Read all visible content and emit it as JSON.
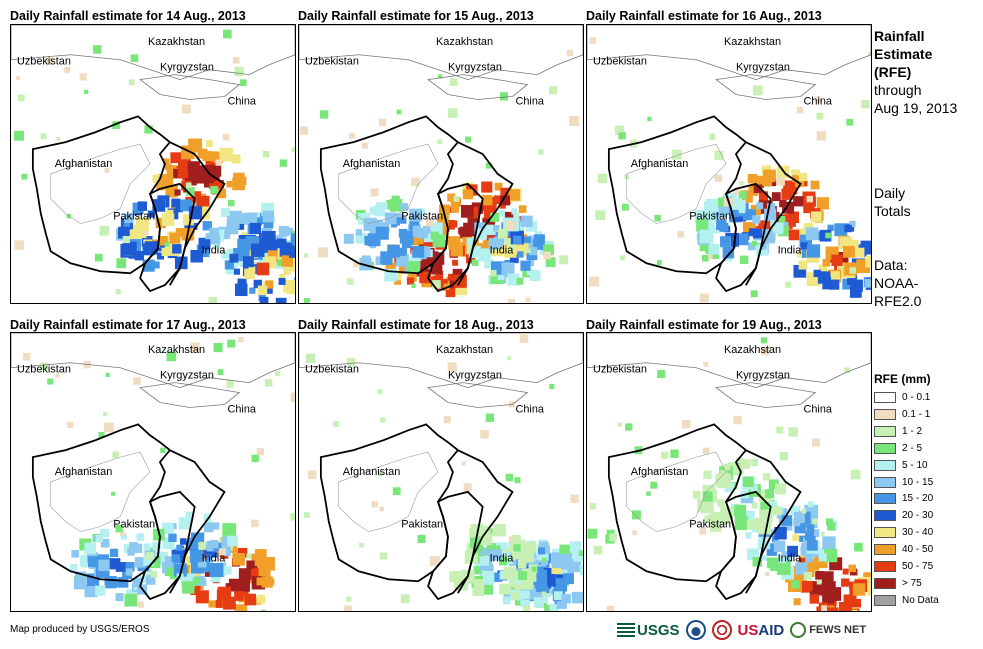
{
  "panels": [
    {
      "title": "Daily Rainfall estimate for 14 Aug., 2013",
      "day": 14
    },
    {
      "title": "Daily Rainfall estimate for 15 Aug., 2013",
      "day": 15
    },
    {
      "title": "Daily Rainfall estimate for 16 Aug., 2013",
      "day": 16
    },
    {
      "title": "Daily Rainfall estimate for 17 Aug., 2013",
      "day": 17
    },
    {
      "title": "Daily Rainfall estimate for 18 Aug., 2013",
      "day": 18
    },
    {
      "title": "Daily Rainfall estimate for 19 Aug., 2013",
      "day": 19
    }
  ],
  "map_labels": {
    "kazakhstan": "Kazakhstan",
    "uzbekistan": "Uzbekistan",
    "kyrgyzstan": "Kyrgyzstan",
    "china": "China",
    "afghanistan": "Afghanistan",
    "pakistan": "Pakistan",
    "india": "India"
  },
  "side": {
    "title_line1": "Rainfall",
    "title_line2": "Estimate",
    "title_line3": "(RFE)",
    "through": "through",
    "date": "Aug 19, 2013",
    "totals_line1": "Daily",
    "totals_line2": "Totals",
    "data_line1": "Data:",
    "data_line2": "NOAA-",
    "data_line3": "RFE2.0"
  },
  "legend": {
    "title": "RFE (mm)",
    "items": [
      {
        "label": "0 - 0.1",
        "color": "#ffffff"
      },
      {
        "label": "0.1 - 1",
        "color": "#f0dcc0"
      },
      {
        "label": "1 - 2",
        "color": "#c8f0b4"
      },
      {
        "label": "2 - 5",
        "color": "#78e678"
      },
      {
        "label": "5 - 10",
        "color": "#b4f0f0"
      },
      {
        "label": "10 - 15",
        "color": "#8cc8f0"
      },
      {
        "label": "15 - 20",
        "color": "#4696e6"
      },
      {
        "label": "20 - 30",
        "color": "#1e5ad2"
      },
      {
        "label": "30 - 40",
        "color": "#f0e682"
      },
      {
        "label": "40 - 50",
        "color": "#f0a028"
      },
      {
        "label": "50 - 75",
        "color": "#e63c14"
      },
      {
        "label": "> 75",
        "color": "#a01e1e"
      },
      {
        "label": "No Data",
        "color": "#a0a0a0"
      }
    ]
  },
  "footer": {
    "credit": "Map produced by USGS/EROS",
    "logo_usgs": "USGS",
    "logo_usaid_us": "US",
    "logo_usaid_aid": "AID",
    "logo_fews": "FEWS NET"
  }
}
